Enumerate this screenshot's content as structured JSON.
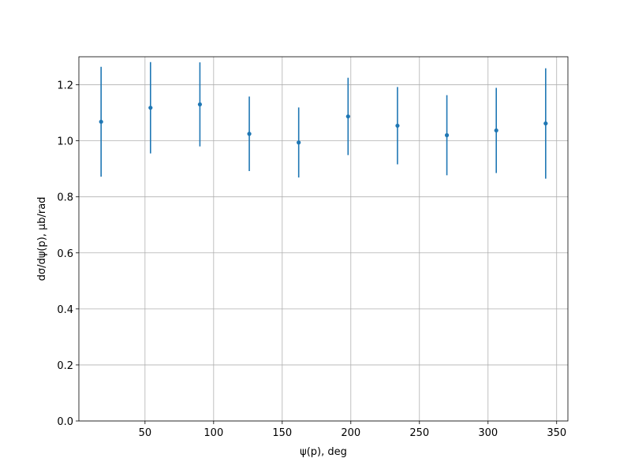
{
  "chart_data": {
    "type": "errorbar",
    "x_label": "ψ(p), deg",
    "y_label": "dσ/dψ(p), μb/rad",
    "x": [
      18,
      54,
      90,
      126,
      162,
      198,
      234,
      270,
      306,
      342
    ],
    "values": [
      1.068,
      1.118,
      1.13,
      1.025,
      0.994,
      1.087,
      1.054,
      1.02,
      1.037,
      1.062
    ],
    "errors": [
      0.196,
      0.163,
      0.15,
      0.133,
      0.125,
      0.138,
      0.138,
      0.143,
      0.152,
      0.197
    ],
    "color": "#1f77b4",
    "xlim": [
      1.8,
      358.2
    ],
    "ylim": [
      0,
      1.3
    ],
    "xticks": [
      50,
      100,
      150,
      200,
      250,
      300,
      350
    ],
    "yticks": [
      {
        "value": 0,
        "label": "0.0"
      },
      {
        "value": 0.2,
        "label": "0.2"
      },
      {
        "value": 0.4,
        "label": "0.4"
      },
      {
        "value": 0.6,
        "label": "0.6"
      },
      {
        "value": 0.8,
        "label": "0.8"
      },
      {
        "value": 1.0,
        "label": "1.0"
      },
      {
        "value": 1.2,
        "label": "1.2"
      }
    ],
    "grid": true
  }
}
